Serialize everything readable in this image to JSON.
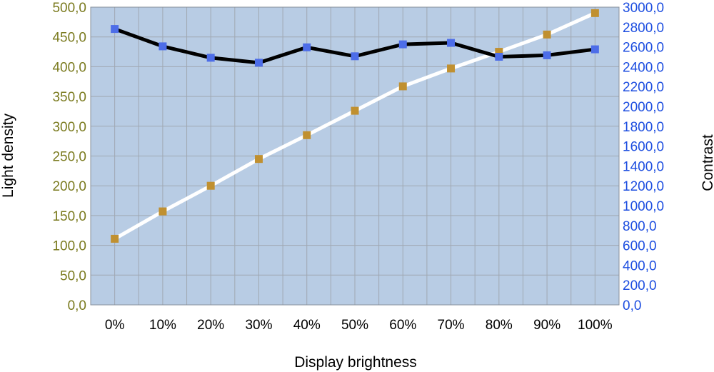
{
  "chart_data": {
    "type": "line",
    "xlabel": "Display brightness",
    "ylabel_left": "Light density",
    "ylabel_right": "Contrast",
    "categories": [
      "0%",
      "10%",
      "20%",
      "30%",
      "40%",
      "50%",
      "60%",
      "70%",
      "80%",
      "90%",
      "100%"
    ],
    "ylim_left": [
      0,
      500
    ],
    "yticks_left": [
      "0,0",
      "50,0",
      "100,0",
      "150,0",
      "200,0",
      "250,0",
      "300,0",
      "350,0",
      "400,0",
      "450,0",
      "500,0"
    ],
    "ylim_right": [
      0,
      3000
    ],
    "yticks_right": [
      "0,0",
      "200,0",
      "400,0",
      "600,0",
      "800,0",
      "1000,0",
      "1200,0",
      "1400,0",
      "1600,0",
      "1800,0",
      "2000,0",
      "2200,0",
      "2400,0",
      "2600,0",
      "2800,0",
      "3000,0"
    ],
    "grid": true,
    "plot_background": "#b8cce4",
    "series": [
      {
        "axis": "left",
        "line_color": "#ffffff",
        "marker_color": "#c09030",
        "values": [
          111,
          157,
          200,
          245,
          285,
          326,
          367,
          397,
          425,
          454,
          490
        ]
      },
      {
        "axis": "right",
        "line_color": "#000000",
        "marker_color": "#4d6de8",
        "values": [
          2780,
          2605,
          2490,
          2440,
          2595,
          2505,
          2625,
          2640,
          2500,
          2515,
          2575
        ]
      }
    ],
    "left_tick_color": "#7a7a1e",
    "right_tick_color": "#1d4ee0"
  }
}
